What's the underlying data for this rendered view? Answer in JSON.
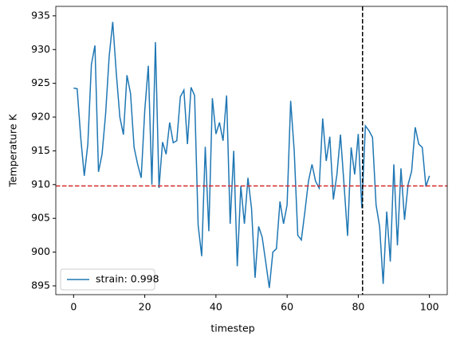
{
  "chart_data": {
    "type": "line",
    "xlabel": "timestep",
    "ylabel": "Temperature K",
    "x": [
      0,
      1,
      2,
      3,
      4,
      5,
      6,
      7,
      8,
      9,
      10,
      11,
      12,
      13,
      14,
      15,
      16,
      17,
      18,
      19,
      20,
      21,
      22,
      23,
      24,
      25,
      26,
      27,
      28,
      29,
      30,
      31,
      32,
      33,
      34,
      35,
      36,
      37,
      38,
      39,
      40,
      41,
      42,
      43,
      44,
      45,
      46,
      47,
      48,
      49,
      50,
      51,
      52,
      53,
      54,
      55,
      56,
      57,
      58,
      59,
      60,
      61,
      62,
      63,
      64,
      65,
      66,
      67,
      68,
      69,
      70,
      71,
      72,
      73,
      74,
      75,
      76,
      77,
      78,
      79,
      80,
      81,
      82,
      83,
      84,
      85,
      86,
      87,
      88,
      89,
      90,
      91,
      92,
      93,
      94,
      95,
      96,
      97,
      98,
      99,
      100
    ],
    "series": [
      {
        "name": "strain: 0.998",
        "color": "#1f77b4",
        "values": [
          924.3,
          924.2,
          917,
          911.3,
          916,
          927.8,
          930.6,
          911.9,
          914.5,
          920.5,
          929,
          934.1,
          926.5,
          920,
          917.4,
          926.2,
          923.5,
          915.5,
          913,
          911,
          921,
          927.6,
          910,
          931.1,
          909.5,
          916.3,
          914.5,
          919.2,
          916.2,
          916.5,
          923,
          924,
          916,
          924.4,
          923.2,
          904,
          899.4,
          915.6,
          903.1,
          922.8,
          917.5,
          919.2,
          916.5,
          923.2,
          904.2,
          915,
          897.9,
          909.8,
          904.2,
          911,
          906.5,
          896.2,
          903.8,
          902.2,
          898.5,
          894.7,
          900,
          900.5,
          907.5,
          904.2,
          907,
          922.4,
          915,
          902.5,
          901.8,
          906,
          910.5,
          913,
          910.5,
          909.5,
          919.8,
          913.5,
          917.1,
          907.8,
          911.5,
          917.4,
          910,
          902.4,
          915.5,
          911.5,
          917.5,
          906.5,
          918.7,
          918,
          917,
          907,
          903.8,
          895.3,
          906,
          898.6,
          913,
          901,
          912.4,
          904.8,
          910,
          912,
          918.5,
          916,
          915.5,
          909.7,
          911.3
        ]
      }
    ],
    "reference_lines": [
      {
        "axis": "y",
        "value": 909.8,
        "color": "#d62728"
      },
      {
        "axis": "x",
        "value": 81.2,
        "color": "#000000"
      }
    ],
    "xlim": [
      -5,
      105
    ],
    "xticks": [
      0,
      20,
      40,
      60,
      80,
      100
    ],
    "ylim": [
      893.7,
      936.4
    ],
    "yticks": [
      895,
      900,
      905,
      910,
      915,
      920,
      925,
      930,
      935
    ],
    "legend": "lower left"
  }
}
